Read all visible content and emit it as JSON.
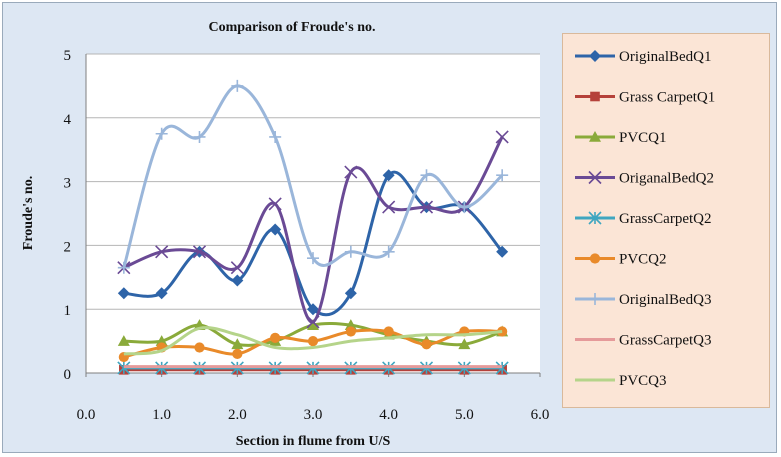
{
  "chart_data": {
    "type": "line",
    "title": "Comparison of Froude's no.",
    "xlabel": "Section in flume from U/S",
    "ylabel": "Froude's no.",
    "xlim": [
      0,
      6
    ],
    "ylim": [
      0,
      5
    ],
    "x_ticks": [
      "0.0",
      "1.0",
      "2.0",
      "3.0",
      "4.0",
      "5.0",
      "6.0"
    ],
    "y_ticks": [
      "0",
      "1",
      "2",
      "3",
      "4",
      "5"
    ],
    "grid": "horizontal",
    "smooth": true,
    "legend_position": "right",
    "x": [
      0.5,
      1.0,
      1.5,
      2.0,
      2.5,
      3.0,
      3.5,
      4.0,
      4.5,
      5.0,
      5.5
    ],
    "series": [
      {
        "name": "OriginalBedQ1",
        "color": "#2e64a8",
        "marker": "diamond",
        "values": [
          1.25,
          1.25,
          1.9,
          1.45,
          2.25,
          1.0,
          1.25,
          3.1,
          2.6,
          2.6,
          1.9
        ]
      },
      {
        "name": "Grass CarpetQ1",
        "color": "#b5413a",
        "marker": "square",
        "values": [
          0.05,
          0.05,
          0.05,
          0.05,
          0.05,
          0.05,
          0.05,
          0.05,
          0.05,
          0.05,
          0.05
        ]
      },
      {
        "name": "PVCQ1",
        "color": "#8aaa3a",
        "marker": "triangle",
        "values": [
          0.5,
          0.5,
          0.75,
          0.45,
          0.5,
          0.75,
          0.75,
          0.6,
          0.5,
          0.45,
          0.65
        ]
      },
      {
        "name": "OriganalBedQ2",
        "color": "#6a4a95",
        "marker": "x",
        "values": [
          1.65,
          1.9,
          1.9,
          1.65,
          2.65,
          0.8,
          3.15,
          2.6,
          2.6,
          2.6,
          3.7
        ]
      },
      {
        "name": "GrassCarpetQ2",
        "color": "#3fa6c0",
        "marker": "star",
        "values": [
          0.08,
          0.08,
          0.08,
          0.08,
          0.08,
          0.08,
          0.08,
          0.08,
          0.08,
          0.08,
          0.08
        ]
      },
      {
        "name": "PVCQ2",
        "color": "#e98a2a",
        "marker": "circle",
        "values": [
          0.25,
          0.4,
          0.4,
          0.3,
          0.55,
          0.5,
          0.65,
          0.65,
          0.45,
          0.65,
          0.65
        ]
      },
      {
        "name": "OriginalBedQ3",
        "color": "#9ab6da",
        "marker": "plus",
        "values": [
          1.65,
          3.75,
          3.7,
          4.5,
          3.7,
          1.8,
          1.9,
          1.9,
          3.1,
          2.6,
          3.1
        ]
      },
      {
        "name": "GrassCarpetQ3",
        "color": "#e59a9a",
        "marker": "none",
        "values": [
          0.1,
          0.1,
          0.1,
          0.1,
          0.1,
          0.1,
          0.1,
          0.1,
          0.1,
          0.1,
          0.1
        ]
      },
      {
        "name": "PVCQ3",
        "color": "#b5d48a",
        "marker": "none",
        "values": [
          0.3,
          0.35,
          0.7,
          0.6,
          0.4,
          0.4,
          0.5,
          0.55,
          0.6,
          0.6,
          0.65
        ]
      }
    ]
  }
}
